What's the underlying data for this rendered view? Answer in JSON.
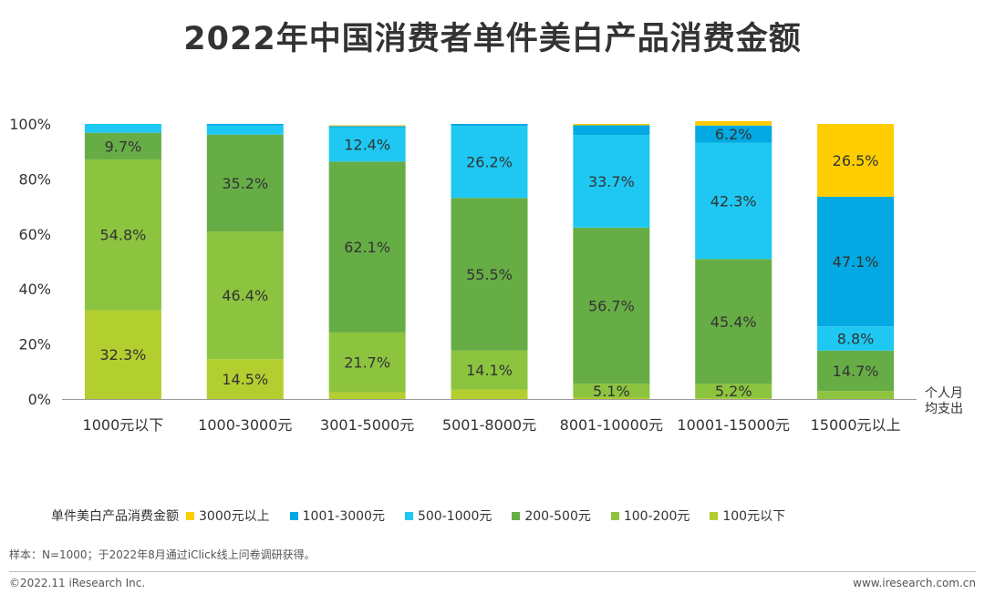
{
  "title": "2022年中国消费者单件美白产品消费金额",
  "axis_note_line1": "个人月",
  "axis_note_line2": "均支出",
  "legend_title": "单件美白产品消费金额",
  "footnote": "样本：N=1000；于2022年8月通过iClick线上问卷调研获得。",
  "copyright": "©2022.11 iResearch Inc.",
  "website": "www.iresearch.com.cn",
  "chart_data": {
    "type": "bar",
    "stacked": true,
    "categories": [
      "1000元以下",
      "1000-3000元",
      "3001-5000元",
      "5001-8000元",
      "8001-10000元",
      "10001-15000元",
      "15000元以上"
    ],
    "ylim": [
      0,
      100
    ],
    "yticks": [
      "0%",
      "20%",
      "40%",
      "60%",
      "80%",
      "100%"
    ],
    "series": [
      {
        "name": "100元以下",
        "color": "#B2CE2F",
        "values": [
          32.3,
          14.5,
          2.5,
          3.5,
          0.5,
          0.3,
          0
        ],
        "labels": [
          "32.3%",
          "14.5%",
          "",
          "",
          "",
          "",
          ""
        ]
      },
      {
        "name": "100-200元",
        "color": "#8CC43F",
        "values": [
          54.8,
          46.4,
          21.7,
          14.1,
          5.1,
          5.2,
          2.9
        ],
        "labels": [
          "54.8%",
          "46.4%",
          "21.7%",
          "14.1%",
          "5.1%",
          "5.2%",
          ""
        ]
      },
      {
        "name": "200-500元",
        "color": "#67AD46",
        "values": [
          9.7,
          35.2,
          62.1,
          55.5,
          56.7,
          45.4,
          14.7
        ],
        "labels": [
          "9.7%",
          "35.2%",
          "62.1%",
          "55.5%",
          "56.7%",
          "45.4%",
          "14.7%"
        ]
      },
      {
        "name": "500-1000元",
        "color": "#1EC8F2",
        "values": [
          3.2,
          3.4,
          12.4,
          26.2,
          33.7,
          42.3,
          8.8
        ],
        "labels": [
          "",
          "",
          "12.4%",
          "26.2%",
          "33.7%",
          "42.3%",
          "8.8%"
        ]
      },
      {
        "name": "1001-3000元",
        "color": "#02A9E2",
        "values": [
          0,
          0.5,
          0.5,
          0.7,
          3.5,
          6.2,
          47.1
        ],
        "labels": [
          "",
          "",
          "",
          "",
          "",
          "6.2%",
          "47.1%"
        ]
      },
      {
        "name": "3000元以上",
        "color": "#FDCD00",
        "values": [
          0,
          0,
          0.3,
          0,
          0.5,
          1.6,
          26.5
        ],
        "labels": [
          "",
          "",
          "",
          "",
          "",
          "",
          "26.5%"
        ]
      }
    ]
  }
}
